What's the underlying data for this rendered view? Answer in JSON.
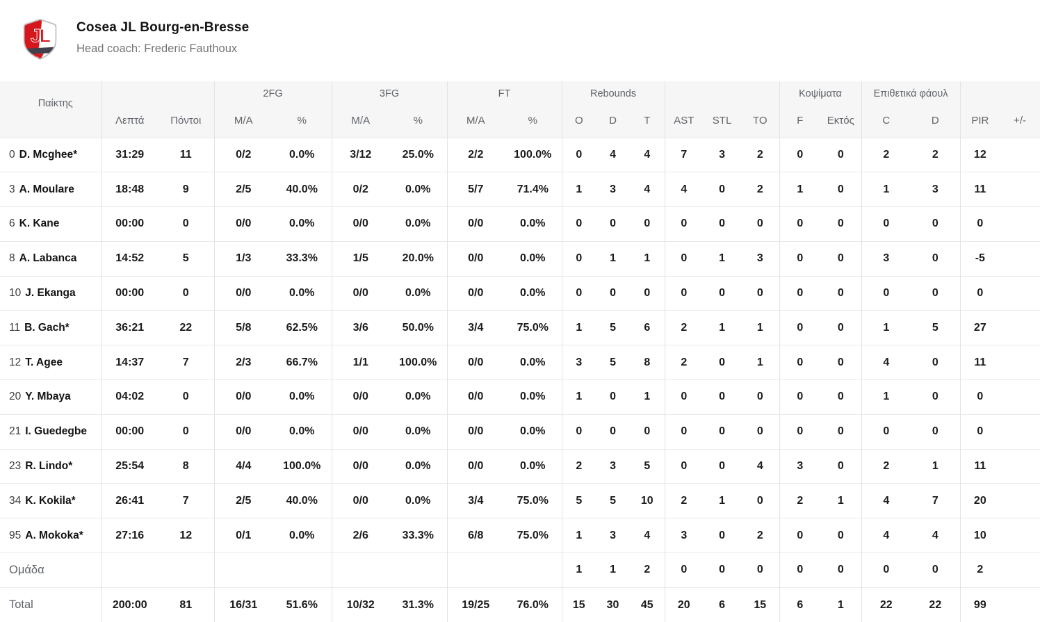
{
  "header": {
    "team_name": "Cosea JL Bourg-en-Bresse",
    "coach_line": "Head coach: Frederic Fauthoux",
    "logo_letters": "JL"
  },
  "colors": {
    "logo_red": "#d6161d",
    "logo_dark": "#41414b",
    "logo_silver": "#bfbfbf",
    "header_bg": "#f6f6f6",
    "header_text": "#5f6368",
    "data_text": "#1b1b1b"
  },
  "table": {
    "player_col_label": "Παίκτης",
    "groups": [
      {
        "label": "",
        "span": 2
      },
      {
        "label": "2FG",
        "span": 2
      },
      {
        "label": "3FG",
        "span": 2
      },
      {
        "label": "FT",
        "span": 2
      },
      {
        "label": "Rebounds",
        "span": 3
      },
      {
        "label": "",
        "span": 3
      },
      {
        "label": "Κοψίματα",
        "span": 2
      },
      {
        "label": "Επιθετικά φάουλ",
        "span": 2
      },
      {
        "label": "",
        "span": 2
      }
    ],
    "subcols": [
      "Λεπτά",
      "Πόντοι",
      "M/A",
      "%",
      "M/A",
      "%",
      "M/A",
      "%",
      "O",
      "D",
      "T",
      "AST",
      "STL",
      "TO",
      "F",
      "Εκτός",
      "C",
      "D",
      "PIR",
      "+/-"
    ],
    "rows": [
      {
        "num": "0",
        "name": "D. Mcghee*",
        "muted": false,
        "values": [
          "31:29",
          "11",
          "0/2",
          "0.0%",
          "3/12",
          "25.0%",
          "2/2",
          "100.0%",
          "0",
          "4",
          "4",
          "7",
          "3",
          "2",
          "0",
          "0",
          "2",
          "2",
          "12",
          ""
        ]
      },
      {
        "num": "3",
        "name": "A. Moulare",
        "muted": false,
        "values": [
          "18:48",
          "9",
          "2/5",
          "40.0%",
          "0/2",
          "0.0%",
          "5/7",
          "71.4%",
          "1",
          "3",
          "4",
          "4",
          "0",
          "2",
          "1",
          "0",
          "1",
          "3",
          "11",
          ""
        ]
      },
      {
        "num": "6",
        "name": "K. Kane",
        "muted": false,
        "values": [
          "00:00",
          "0",
          "0/0",
          "0.0%",
          "0/0",
          "0.0%",
          "0/0",
          "0.0%",
          "0",
          "0",
          "0",
          "0",
          "0",
          "0",
          "0",
          "0",
          "0",
          "0",
          "0",
          ""
        ]
      },
      {
        "num": "8",
        "name": "A. Labanca",
        "muted": false,
        "values": [
          "14:52",
          "5",
          "1/3",
          "33.3%",
          "1/5",
          "20.0%",
          "0/0",
          "0.0%",
          "0",
          "1",
          "1",
          "0",
          "1",
          "3",
          "0",
          "0",
          "3",
          "0",
          "-5",
          ""
        ]
      },
      {
        "num": "10",
        "name": "J. Ekanga",
        "muted": false,
        "values": [
          "00:00",
          "0",
          "0/0",
          "0.0%",
          "0/0",
          "0.0%",
          "0/0",
          "0.0%",
          "0",
          "0",
          "0",
          "0",
          "0",
          "0",
          "0",
          "0",
          "0",
          "0",
          "0",
          ""
        ]
      },
      {
        "num": "11",
        "name": "B. Gach*",
        "muted": false,
        "values": [
          "36:21",
          "22",
          "5/8",
          "62.5%",
          "3/6",
          "50.0%",
          "3/4",
          "75.0%",
          "1",
          "5",
          "6",
          "2",
          "1",
          "1",
          "0",
          "0",
          "1",
          "5",
          "27",
          ""
        ]
      },
      {
        "num": "12",
        "name": "T. Agee",
        "muted": false,
        "values": [
          "14:37",
          "7",
          "2/3",
          "66.7%",
          "1/1",
          "100.0%",
          "0/0",
          "0.0%",
          "3",
          "5",
          "8",
          "2",
          "0",
          "1",
          "0",
          "0",
          "4",
          "0",
          "11",
          ""
        ]
      },
      {
        "num": "20",
        "name": "Y. Mbaya",
        "muted": false,
        "values": [
          "04:02",
          "0",
          "0/0",
          "0.0%",
          "0/0",
          "0.0%",
          "0/0",
          "0.0%",
          "1",
          "0",
          "1",
          "0",
          "0",
          "0",
          "0",
          "0",
          "1",
          "0",
          "0",
          ""
        ]
      },
      {
        "num": "21",
        "name": "I. Guedegbe",
        "muted": false,
        "values": [
          "00:00",
          "0",
          "0/0",
          "0.0%",
          "0/0",
          "0.0%",
          "0/0",
          "0.0%",
          "0",
          "0",
          "0",
          "0",
          "0",
          "0",
          "0",
          "0",
          "0",
          "0",
          "0",
          ""
        ]
      },
      {
        "num": "23",
        "name": "R. Lindo*",
        "muted": false,
        "values": [
          "25:54",
          "8",
          "4/4",
          "100.0%",
          "0/0",
          "0.0%",
          "0/0",
          "0.0%",
          "2",
          "3",
          "5",
          "0",
          "0",
          "4",
          "3",
          "0",
          "2",
          "1",
          "11",
          ""
        ]
      },
      {
        "num": "34",
        "name": "K. Kokila*",
        "muted": false,
        "values": [
          "26:41",
          "7",
          "2/5",
          "40.0%",
          "0/0",
          "0.0%",
          "3/4",
          "75.0%",
          "5",
          "5",
          "10",
          "2",
          "1",
          "0",
          "2",
          "1",
          "4",
          "7",
          "20",
          ""
        ]
      },
      {
        "num": "95",
        "name": "A. Mokoka*",
        "muted": false,
        "values": [
          "27:16",
          "12",
          "0/1",
          "0.0%",
          "2/6",
          "33.3%",
          "6/8",
          "75.0%",
          "1",
          "3",
          "4",
          "3",
          "0",
          "2",
          "0",
          "0",
          "4",
          "4",
          "10",
          ""
        ]
      },
      {
        "num": "",
        "name": "Ομάδα",
        "muted": true,
        "values": [
          "",
          "",
          "",
          "",
          "",
          "",
          "",
          "",
          "1",
          "1",
          "2",
          "0",
          "0",
          "0",
          "0",
          "0",
          "0",
          "0",
          "2",
          ""
        ]
      },
      {
        "num": "",
        "name": "Total",
        "muted": true,
        "values": [
          "200:00",
          "81",
          "16/31",
          "51.6%",
          "10/32",
          "31.3%",
          "19/25",
          "76.0%",
          "15",
          "30",
          "45",
          "20",
          "6",
          "15",
          "6",
          "1",
          "22",
          "22",
          "99",
          ""
        ]
      }
    ]
  }
}
